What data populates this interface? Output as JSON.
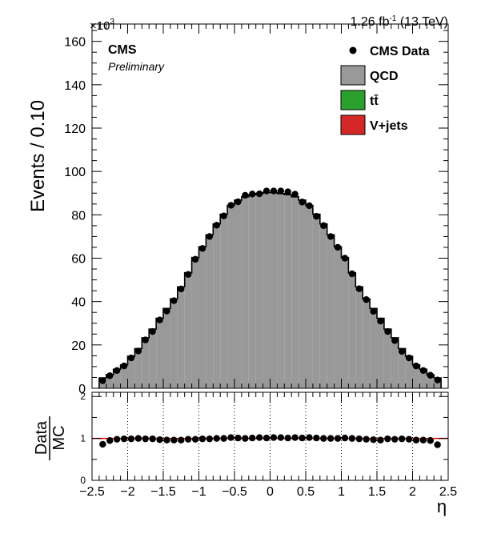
{
  "lumi": {
    "value": "1.26 fb",
    "sup": "-1",
    "energy": " (13 TeV)"
  },
  "exponent": {
    "base": "×10",
    "power": "3"
  },
  "label": {
    "title": "CMS",
    "subtitle": "Preliminary"
  },
  "chart_data": [
    {
      "type": "bar",
      "title": "",
      "xlabel": "η",
      "ylabel": "Events / 0.10",
      "xlim": [
        -2.5,
        2.5
      ],
      "ylim": [
        0,
        168
      ],
      "y_scale_note": "×10^3",
      "bin_edges": [
        -2.4,
        -2.3,
        -2.2,
        -2.1,
        -2.0,
        -1.9,
        -1.8,
        -1.7,
        -1.6,
        -1.5,
        -1.4,
        -1.3,
        -1.2,
        -1.1,
        -1.0,
        -0.9,
        -0.8,
        -0.7,
        -0.6,
        -0.5,
        -0.4,
        -0.3,
        -0.2,
        -0.1,
        0.0,
        0.1,
        0.2,
        0.3,
        0.4,
        0.5,
        0.6,
        0.7,
        0.8,
        0.9,
        1.0,
        1.1,
        1.2,
        1.3,
        1.4,
        1.5,
        1.6,
        1.7,
        1.8,
        1.9,
        2.0,
        2.1,
        2.2,
        2.3,
        2.4
      ],
      "x_ticks": [
        -2.5,
        -2,
        -1.5,
        -1,
        -0.5,
        0,
        0.5,
        1,
        1.5,
        2,
        2.5
      ],
      "x_tick_labels": [
        "−2.5",
        "−2",
        "−1.5",
        "−1",
        "−0.5",
        "0",
        "0.5",
        "1",
        "1.5",
        "2",
        "2.5"
      ],
      "y_ticks": [
        0,
        20,
        40,
        60,
        80,
        100,
        120,
        140,
        160
      ],
      "legend_position": "top-right",
      "grid": "vertical dotted lines in ratio panel",
      "series": [
        {
          "name": "CMS Data",
          "style": "points",
          "color": "#000000",
          "values": [
            3.5,
            5.8,
            8.2,
            10.3,
            14.0,
            17.2,
            22.3,
            26.2,
            31.5,
            35.6,
            40.4,
            45.8,
            52.5,
            59.5,
            64.5,
            70.0,
            75.2,
            79.5,
            84.4,
            86.0,
            89.0,
            89.6,
            89.7,
            91.0,
            91.0,
            91.0,
            90.6,
            89.5,
            85.9,
            84.2,
            79.3,
            75.0,
            70.0,
            65.0,
            60.0,
            52.8,
            45.9,
            40.9,
            35.5,
            31.0,
            26.2,
            22.0,
            17.0,
            14.0,
            10.3,
            8.2,
            6.0,
            3.8
          ]
        },
        {
          "name": "QCD",
          "style": "stacked-fill",
          "color": "#999999",
          "values": [
            4.5,
            6.0,
            8.5,
            10.5,
            14.5,
            18.0,
            23.0,
            27.0,
            32.0,
            36.5,
            41.0,
            46.5,
            53.0,
            60.0,
            65.0,
            70.5,
            75.5,
            80.0,
            84.0,
            86.5,
            88.0,
            89.0,
            89.5,
            90.0,
            90.0,
            89.5,
            89.0,
            88.0,
            86.5,
            84.0,
            80.0,
            75.5,
            70.5,
            65.0,
            60.0,
            53.0,
            46.5,
            41.0,
            36.5,
            32.0,
            27.0,
            23.0,
            18.0,
            14.5,
            10.5,
            8.5,
            6.0,
            4.5
          ]
        },
        {
          "name": "tt̄",
          "style": "stacked-fill",
          "color": "#2ca02c",
          "values": [
            0.1,
            0.1,
            0.1,
            0.1,
            0.1,
            0.1,
            0.1,
            0.1,
            0.1,
            0.1,
            0.1,
            0.1,
            0.1,
            0.1,
            0.1,
            0.1,
            0.1,
            0.1,
            0.1,
            0.1,
            0.1,
            0.1,
            0.1,
            0.1,
            0.1,
            0.1,
            0.1,
            0.1,
            0.1,
            0.1,
            0.1,
            0.1,
            0.1,
            0.1,
            0.1,
            0.1,
            0.1,
            0.1,
            0.1,
            0.1,
            0.1,
            0.1,
            0.1,
            0.1,
            0.1,
            0.1,
            0.1,
            0.1
          ]
        },
        {
          "name": "V+jets",
          "style": "stacked-fill",
          "color": "#d62728",
          "values": [
            0.2,
            0.2,
            0.2,
            0.2,
            0.2,
            0.2,
            0.2,
            0.2,
            0.2,
            0.2,
            0.2,
            0.2,
            0.2,
            0.2,
            0.2,
            0.2,
            0.2,
            0.2,
            0.2,
            0.2,
            0.2,
            0.2,
            0.2,
            0.2,
            0.2,
            0.2,
            0.2,
            0.2,
            0.2,
            0.2,
            0.2,
            0.2,
            0.2,
            0.2,
            0.2,
            0.2,
            0.2,
            0.2,
            0.2,
            0.2,
            0.2,
            0.2,
            0.2,
            0.2,
            0.2,
            0.2,
            0.2,
            0.2
          ]
        }
      ]
    },
    {
      "type": "scatter",
      "title": "",
      "xlabel": "η",
      "ylabel_num": "Data",
      "ylabel_den": "MC",
      "xlim": [
        -2.5,
        2.5
      ],
      "ylim": [
        0,
        2.1
      ],
      "y_ticks": [
        0,
        1,
        2
      ],
      "reference_line": {
        "y": 1,
        "color": "#ff0000"
      },
      "grid": "vertical dotted",
      "series": [
        {
          "name": "Data/MC",
          "color": "#000000",
          "values": [
            0.86,
            0.95,
            0.98,
            0.99,
            0.99,
            1.0,
            0.99,
            0.99,
            0.97,
            0.96,
            0.96,
            0.96,
            0.98,
            0.98,
            0.99,
            0.99,
            1.0,
            1.0,
            1.02,
            1.01,
            1.0,
            1.01,
            1.02,
            1.01,
            1.02,
            1.02,
            1.01,
            1.02,
            1.01,
            1.02,
            1.01,
            1.0,
            1.0,
            1.0,
            1.01,
            1.0,
            0.99,
            0.98,
            0.97,
            0.96,
            0.99,
            0.98,
            0.99,
            0.98,
            0.96,
            0.96,
            0.95,
            0.85
          ]
        }
      ]
    }
  ]
}
